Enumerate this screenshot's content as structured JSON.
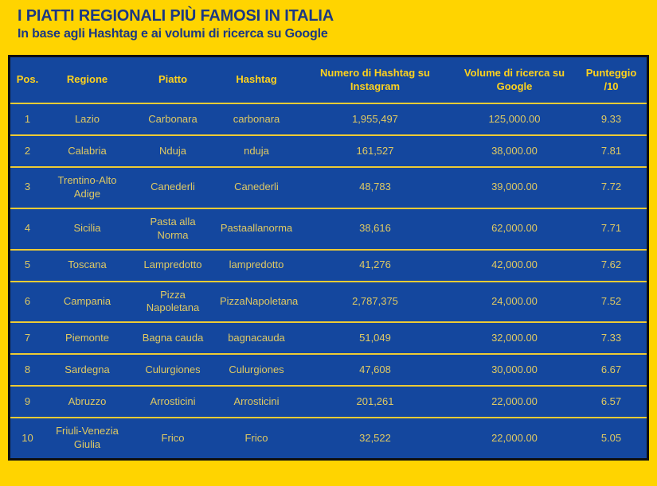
{
  "header": {
    "title": "I PIATTI REGIONALI PIÙ FAMOSI IN ITALIA",
    "subtitle": "In base agli Hashtag e ai volumi di ricerca su Google"
  },
  "colors": {
    "background": "#FFD400",
    "table_blue": "#14479E",
    "title_blue": "#1B3884",
    "header_text": "#FFD21C",
    "cell_text": "#DFC963",
    "row_divider": "#EDCB35",
    "table_border": "#0E0E0E"
  },
  "chart_data": {
    "type": "table",
    "title": "I PIATTI REGIONALI PIÙ FAMOSI IN ITALIA",
    "subtitle": "In base agli Hashtag e ai volumi di ricerca su Google",
    "columns": [
      "Pos.",
      "Regione",
      "Piatto",
      "Hashtag",
      "Numero di Hashtag su Instagram",
      "Volume di ricerca su Google",
      "Punteggio /10"
    ],
    "rows": [
      [
        "1",
        "Lazio",
        "Carbonara",
        "carbonara",
        "1,955,497",
        "125,000.00",
        "9.33"
      ],
      [
        "2",
        "Calabria",
        "Nduja",
        "nduja",
        "161,527",
        "38,000.00",
        "7.81"
      ],
      [
        "3",
        "Trentino-Alto Adige",
        "Canederli",
        "Canederli",
        "48,783",
        "39,000.00",
        "7.72"
      ],
      [
        "4",
        "Sicilia",
        "Pasta alla Norma",
        "Pastaallanorma",
        "38,616",
        "62,000.00",
        "7.71"
      ],
      [
        "5",
        "Toscana",
        "Lampredotto",
        "lampredotto",
        "41,276",
        "42,000.00",
        "7.62"
      ],
      [
        "6",
        "Campania",
        "Pizza Napoletana",
        "PizzaNapoletana",
        "2,787,375",
        "24,000.00",
        "7.52"
      ],
      [
        "7",
        "Piemonte",
        "Bagna cauda",
        "bagnacauda",
        "51,049",
        "32,000.00",
        "7.33"
      ],
      [
        "8",
        "Sardegna",
        "Culurgiones",
        "Culurgiones",
        "47,608",
        "30,000.00",
        "6.67"
      ],
      [
        "9",
        "Abruzzo",
        "Arrosticini",
        "Arrosticini",
        "201,261",
        "22,000.00",
        "6.57"
      ],
      [
        "10",
        "Friuli-Venezia Giulia",
        "Frico",
        "Frico",
        "32,522",
        "22,000.00",
        "5.05"
      ]
    ]
  }
}
